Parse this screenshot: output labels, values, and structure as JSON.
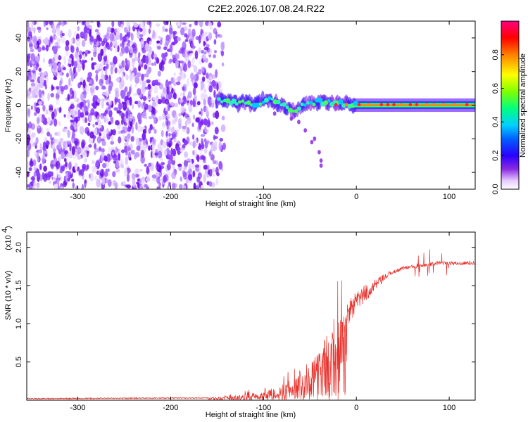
{
  "title": "C2E2.2026.107.08.24.R22",
  "chart_data": [
    {
      "type": "heatmap",
      "name": "spectrogram",
      "xlabel": "Height of straight line (km)",
      "ylabel": "Frequency (Hz)",
      "xlim": [
        -355,
        128
      ],
      "ylim": [
        -50,
        50
      ],
      "x_ticks": [
        -300,
        -200,
        -100,
        0,
        100
      ],
      "x_tick_labels": [
        "-300",
        "-200",
        "-100",
        "0",
        "100"
      ],
      "y_ticks": [
        -40,
        -20,
        0,
        20,
        40
      ],
      "y_tick_labels": [
        "-40",
        "-20",
        "0",
        "20",
        "40"
      ],
      "noise_region_x": [
        -355,
        -150
      ],
      "signal_trace": [
        {
          "x": -150,
          "f": 3
        },
        {
          "x": -130,
          "f": 2
        },
        {
          "x": -110,
          "f": 0
        },
        {
          "x": -95,
          "f": 4
        },
        {
          "x": -80,
          "f": 0
        },
        {
          "x": -65,
          "f": -4
        },
        {
          "x": -55,
          "f": 1
        },
        {
          "x": -40,
          "f": 2
        },
        {
          "x": -20,
          "f": 1
        },
        {
          "x": 0,
          "f": 0
        },
        {
          "x": 128,
          "f": 0
        }
      ],
      "colorbar": {
        "label": "Normalized spectral amplitude",
        "range": [
          0,
          1
        ],
        "ticks": [
          0.0,
          0.2,
          0.4,
          0.6,
          0.8
        ],
        "tick_labels": [
          "0.0",
          "0.2",
          "0.4",
          "0.6",
          "0.8"
        ],
        "colors": [
          "#ffffff",
          "#d9b3ff",
          "#7a00ff",
          "#0000ff",
          "#00e5ff",
          "#00ff66",
          "#80ff00",
          "#ffff00",
          "#ff8000",
          "#ff0000",
          "#ff00aa"
        ]
      }
    },
    {
      "type": "line",
      "name": "snr",
      "xlabel": "Height of straight line (km)",
      "ylabel": "SNR (10 * v/v)",
      "yscale_label": "(x10",
      "yscale_exp": "4",
      "xlim": [
        -355,
        128
      ],
      "ylim": [
        0,
        2.2
      ],
      "x_ticks": [
        -300,
        -200,
        -100,
        0,
        100
      ],
      "x_tick_labels": [
        "-300",
        "-200",
        "-100",
        "0",
        "100"
      ],
      "y_ticks": [
        0.5,
        1.0,
        1.5,
        2.0
      ],
      "y_tick_labels": [
        "0.5",
        "1.0",
        "1.5",
        "2.0"
      ],
      "series_color": "#e8302a",
      "envelope": [
        {
          "x": -355,
          "y": 0.02
        },
        {
          "x": -160,
          "y": 0.03
        },
        {
          "x": -130,
          "y": 0.06
        },
        {
          "x": -100,
          "y": 0.12
        },
        {
          "x": -80,
          "y": 0.2
        },
        {
          "x": -60,
          "y": 0.35
        },
        {
          "x": -45,
          "y": 0.55
        },
        {
          "x": -35,
          "y": 0.8
        },
        {
          "x": -25,
          "y": 1.0
        },
        {
          "x": -15,
          "y": 1.1
        },
        {
          "x": -5,
          "y": 1.2
        },
        {
          "x": 5,
          "y": 1.35
        },
        {
          "x": 20,
          "y": 1.5
        },
        {
          "x": 35,
          "y": 1.65
        },
        {
          "x": 50,
          "y": 1.73
        },
        {
          "x": 70,
          "y": 1.76
        },
        {
          "x": 90,
          "y": 1.8
        },
        {
          "x": 110,
          "y": 1.79
        },
        {
          "x": 128,
          "y": 1.8
        }
      ]
    }
  ]
}
